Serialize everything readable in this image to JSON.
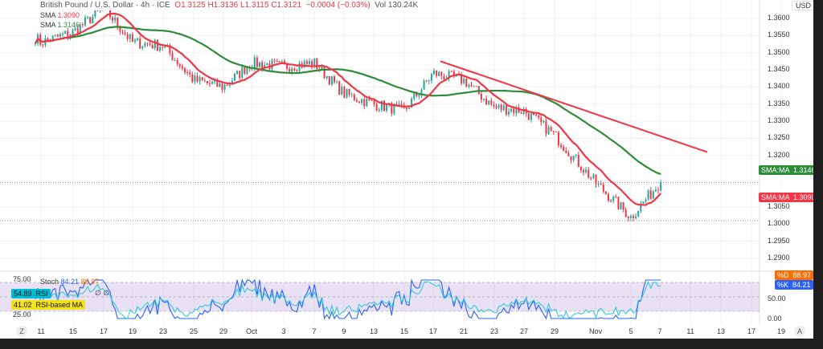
{
  "header": {
    "symbol": "British Pound / U.S. Dollar · 4h · ICE",
    "ohlc": "O1.3125 H1.3136 L1.3115 C1.3121",
    "change": "−0.0004 (−0.03%)",
    "volume": "Vol 130.24K"
  },
  "legend": {
    "sma1_label": "SMA",
    "sma1_value": "1.3090",
    "sma2_label": "SMA",
    "sma2_value": "1.3146"
  },
  "price_axis": {
    "currency": "USD",
    "ticks": [
      "1.3600",
      "1.3550",
      "1.3500",
      "1.3450",
      "1.3400",
      "1.3350",
      "1.3300",
      "1.3250",
      "1.3200",
      "1.3050",
      "1.3000",
      "1.2950",
      "1.2900"
    ],
    "tags": [
      {
        "label": "SMA:MA",
        "value": "1.3146",
        "color": "#2e8b3a"
      },
      {
        "label": "SMA:MA",
        "value": "1.3090",
        "color": "#f23645"
      }
    ]
  },
  "indicator": {
    "stoch_label": "Stoch",
    "stoch_k": "84.21",
    "stoch_d": "88.97",
    "rsi_label": "RSI",
    "rsi_value": "54.89",
    "rsi_ma_label": "RSI-based MA",
    "rsi_ma_value": "41.02",
    "rsi_tail": "∅ ∅",
    "left_ticks": [
      "75.00",
      "25.00"
    ],
    "right_ticks": [
      "50.00",
      "0.00"
    ],
    "tags": [
      {
        "label": "%D",
        "value": "88.97",
        "color": "#ff6d00"
      },
      {
        "label": "%K",
        "value": "84.21",
        "color": "#2962ff"
      }
    ],
    "rsi_tag_color": "#00bcd4",
    "rsi_ma_tag_color": "#f5e11a"
  },
  "time_axis": {
    "ticks": [
      "11",
      "15",
      "17",
      "19",
      "23",
      "25",
      "29",
      "Oct",
      "3",
      "7",
      "9",
      "13",
      "15",
      "17",
      "21",
      "23",
      "27",
      "29",
      "Nov",
      "5",
      "7",
      "11",
      "13",
      "17",
      "19"
    ]
  },
  "buttons": {
    "z": "Z",
    "a": "A"
  },
  "chart_data": {
    "type": "candlestick",
    "xlabel": "",
    "ylabel": "USD",
    "ylim": [
      1.288,
      1.365
    ],
    "closes": [
      [
        "Sep 11",
        1.353
      ],
      [
        "Sep 15",
        1.356
      ],
      [
        "Sep 17",
        1.363
      ],
      [
        "Sep 19",
        1.353
      ],
      [
        "Sep 23",
        1.352
      ],
      [
        "Sep 25",
        1.342
      ],
      [
        "Sep 29",
        1.34
      ],
      [
        "Oct 1",
        1.347
      ],
      [
        "Oct 3",
        1.346
      ],
      [
        "Oct 7",
        1.347
      ],
      [
        "Oct 9",
        1.338
      ],
      [
        "Oct 13",
        1.335
      ],
      [
        "Oct 15",
        1.333
      ],
      [
        "Oct 17",
        1.344
      ],
      [
        "Oct 21",
        1.342
      ],
      [
        "Oct 23",
        1.334
      ],
      [
        "Oct 27",
        1.333
      ],
      [
        "Oct 29",
        1.326
      ],
      [
        "Nov 3",
        1.312
      ],
      [
        "Nov 5",
        1.302
      ],
      [
        "Nov 7",
        1.3121
      ]
    ],
    "last_close": 1.3121,
    "sma_fast": {
      "value": 1.309,
      "color": "#f23645"
    },
    "sma_slow": {
      "value": 1.3146,
      "color": "#2e8b3a"
    },
    "trendline": {
      "from": [
        "Oct 17",
        1.3475
      ],
      "to": [
        "Nov 12",
        1.321
      ],
      "color": "#f23645"
    },
    "support_line": 1.301,
    "up_color": "#26a69a",
    "down_color": "#f23645"
  }
}
